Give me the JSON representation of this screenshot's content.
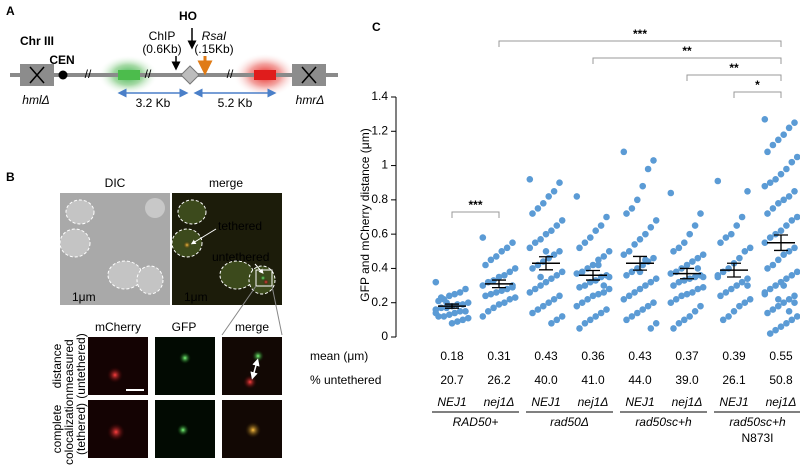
{
  "panel_a": {
    "letter": "A",
    "chromosome": "Chr III",
    "centromere": "CEN",
    "cut_site": "HO",
    "chip": [
      "ChIP",
      "(0.6Kb)"
    ],
    "rsai": [
      "RsaI",
      "(.15Kb)"
    ],
    "distances": [
      "3.2 Kb",
      "5.2 Kb"
    ],
    "left_locus": "hmlΔ",
    "right_locus": "hmrΔ"
  },
  "panel_b": {
    "letter": "B",
    "top_titles": [
      "DIC",
      "merge"
    ],
    "annotations": [
      "tethered",
      "untethered"
    ],
    "scale": "1μm",
    "column_titles": [
      "mCherry",
      "GFP",
      "merge"
    ],
    "row_labels": [
      [
        "distance",
        "measured",
        "(untethered)"
      ],
      [
        "complete",
        "colocalization",
        "(tethered)"
      ]
    ]
  },
  "chart_data": {
    "type": "dotplot",
    "panel_letter": "C",
    "y_label": "GFP and mCherry distance (μm)",
    "ylim": [
      0,
      1.4
    ],
    "yticks": [
      0,
      0.2,
      0.4,
      0.6,
      0.8,
      1,
      1.2,
      1.4
    ],
    "color": "#5b9bd5",
    "categories": [
      "NEJ1",
      "nej1Δ",
      "NEJ1",
      "nej1Δ",
      "NEJ1",
      "nej1Δ",
      "NEJ1",
      "nej1Δ"
    ],
    "group_labels": [
      "RAD50+",
      "rad50Δ",
      "rad50sc+h",
      "rad50sc+h"
    ],
    "group_note": "N873I",
    "points": [
      [
        0.32,
        0.28,
        0.26,
        0.25,
        0.24,
        0.22,
        0.21,
        0.2,
        0.19,
        0.19,
        0.18,
        0.17,
        0.17,
        0.16,
        0.15,
        0.15,
        0.14,
        0.13,
        0.12,
        0.12,
        0.11,
        0.1,
        0.09,
        0.08,
        0.2,
        0.23,
        0.14
      ],
      [
        0.58,
        0.55,
        0.52,
        0.5,
        0.47,
        0.45,
        0.42,
        0.4,
        0.38,
        0.36,
        0.35,
        0.33,
        0.32,
        0.3,
        0.29,
        0.28,
        0.27,
        0.26,
        0.25,
        0.24,
        0.23,
        0.22,
        0.2,
        0.19,
        0.17,
        0.15,
        0.12,
        0.3
      ],
      [
        0.92,
        0.9,
        0.85,
        0.82,
        0.78,
        0.75,
        0.72,
        0.68,
        0.65,
        0.62,
        0.6,
        0.57,
        0.55,
        0.52,
        0.5,
        0.48,
        0.46,
        0.44,
        0.42,
        0.4,
        0.38,
        0.36,
        0.34,
        0.32,
        0.3,
        0.28,
        0.26,
        0.24,
        0.22,
        0.2,
        0.18,
        0.16,
        0.14,
        0.12,
        0.1,
        0.08,
        0.5,
        0.35
      ],
      [
        0.82,
        0.7,
        0.65,
        0.62,
        0.58,
        0.55,
        0.52,
        0.5,
        0.47,
        0.45,
        0.42,
        0.4,
        0.38,
        0.37,
        0.36,
        0.35,
        0.33,
        0.32,
        0.3,
        0.29,
        0.28,
        0.26,
        0.25,
        0.24,
        0.22,
        0.2,
        0.18,
        0.16,
        0.14,
        0.12,
        0.1,
        0.08,
        0.05,
        0.35,
        0.3,
        0.42
      ],
      [
        1.08,
        1.03,
        0.98,
        0.88,
        0.8,
        0.75,
        0.72,
        0.68,
        0.64,
        0.6,
        0.57,
        0.54,
        0.5,
        0.48,
        0.46,
        0.44,
        0.42,
        0.4,
        0.38,
        0.36,
        0.34,
        0.32,
        0.3,
        0.28,
        0.26,
        0.24,
        0.22,
        0.2,
        0.18,
        0.16,
        0.14,
        0.12,
        0.1,
        0.08,
        0.05,
        0.45,
        0.38
      ],
      [
        0.84,
        0.72,
        0.65,
        0.6,
        0.55,
        0.52,
        0.5,
        0.48,
        0.46,
        0.44,
        0.42,
        0.4,
        0.38,
        0.37,
        0.36,
        0.35,
        0.34,
        0.33,
        0.32,
        0.3,
        0.29,
        0.28,
        0.26,
        0.25,
        0.24,
        0.22,
        0.2,
        0.18,
        0.15,
        0.12,
        0.1,
        0.08,
        0.05,
        0.35,
        0.4
      ],
      [
        0.91,
        0.85,
        0.7,
        0.65,
        0.6,
        0.58,
        0.55,
        0.52,
        0.5,
        0.46,
        0.43,
        0.4,
        0.38,
        0.36,
        0.34,
        0.32,
        0.3,
        0.28,
        0.26,
        0.24,
        0.22,
        0.2,
        0.18,
        0.15,
        0.12,
        0.1,
        0.35,
        0.3
      ],
      [
        1.27,
        1.25,
        1.22,
        1.18,
        1.15,
        1.12,
        1.08,
        1.05,
        1.02,
        0.98,
        0.95,
        0.92,
        0.9,
        0.88,
        0.85,
        0.82,
        0.8,
        0.78,
        0.75,
        0.72,
        0.7,
        0.68,
        0.65,
        0.62,
        0.6,
        0.58,
        0.55,
        0.52,
        0.5,
        0.48,
        0.45,
        0.42,
        0.4,
        0.38,
        0.36,
        0.34,
        0.32,
        0.3,
        0.28,
        0.26,
        0.24,
        0.22,
        0.2,
        0.18,
        0.16,
        0.14,
        0.12,
        0.1,
        0.08,
        0.06,
        0.04,
        0.02,
        0.25,
        0.2,
        0.15,
        0.3,
        0.22
      ]
    ],
    "mean": {
      "label": "mean (μm)",
      "values": [
        0.18,
        0.31,
        0.43,
        0.36,
        0.43,
        0.37,
        0.39,
        0.55
      ],
      "errors": [
        0.012,
        0.022,
        0.038,
        0.028,
        0.04,
        0.03,
        0.04,
        0.045
      ]
    },
    "untethered": {
      "label": "% untethered",
      "values": [
        20.7,
        26.2,
        40,
        41,
        44,
        39,
        26.1,
        50.8
      ],
      "value_labels": [
        "20.7",
        "26.2",
        "40.0",
        "41.0",
        "44.0",
        "39.0",
        "26.1",
        "50.8"
      ]
    },
    "significance": [
      "***",
      "***",
      "**",
      "**",
      "*"
    ]
  }
}
